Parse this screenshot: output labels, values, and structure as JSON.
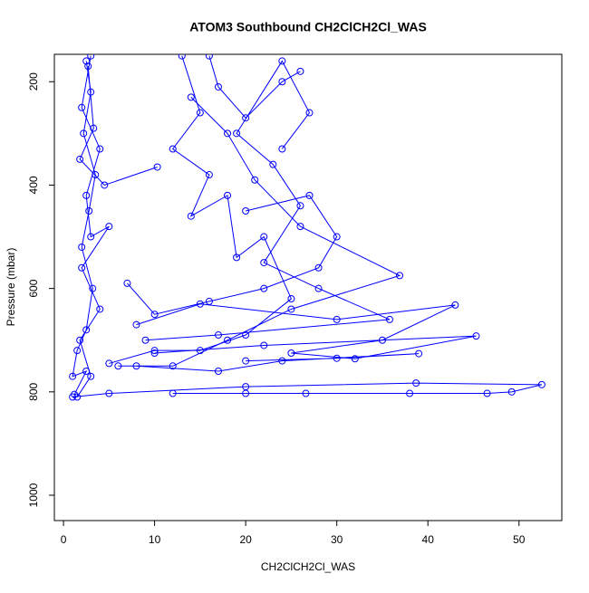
{
  "chart_data": {
    "type": "line",
    "title": "ATOM3 Southbound CH2ClCH2Cl_WAS",
    "x_label": "CH2ClCH2Cl_WAS",
    "y_label": "Pressure (mbar)",
    "xlim": [
      -1.0,
      54.7
    ],
    "xticks": [
      0,
      10,
      20,
      30,
      40,
      50
    ],
    "ylim": [
      1049,
      147
    ],
    "yticks": [
      200,
      400,
      600,
      800,
      1000
    ],
    "markers": true,
    "series": [
      {
        "color": "#0000ff",
        "x": [
          2.5,
          3,
          2.2,
          3.5,
          2.8,
          2,
          3.2,
          2.5,
          1.5,
          1,
          2.5,
          1.2,
          null,
          3,
          2,
          4,
          2.5,
          3,
          5,
          2,
          4,
          1.8,
          3,
          1.5,
          null,
          2.7,
          3.3,
          1.8,
          4.5,
          10.3,
          null,
          13,
          15,
          12,
          16,
          14,
          18,
          19,
          22,
          25,
          20,
          15,
          10,
          5,
          null,
          16,
          17,
          20,
          24,
          26,
          null,
          14,
          18,
          21,
          26,
          36.9,
          25,
          18,
          12,
          6,
          null,
          20,
          27,
          30,
          28,
          22,
          16,
          10,
          7,
          null,
          8,
          15,
          30,
          43,
          35,
          25,
          32,
          45.3,
          22,
          10,
          null,
          12,
          20,
          26.6,
          38,
          46.5,
          49.2,
          52.5,
          38.7,
          20,
          5,
          1,
          null,
          20,
          30,
          39,
          24,
          17,
          8,
          null,
          24,
          27,
          24,
          19,
          23,
          26,
          22,
          28,
          35.8,
          17,
          9
        ],
        "values": [
          160,
          220,
          300,
          380,
          450,
          520,
          600,
          680,
          720,
          770,
          760,
          805,
          null,
          150,
          250,
          330,
          420,
          500,
          480,
          560,
          640,
          700,
          770,
          810,
          null,
          170,
          290,
          350,
          400,
          365,
          null,
          150,
          260,
          330,
          380,
          460,
          420,
          540,
          500,
          620,
          690,
          720,
          720,
          745,
          null,
          150,
          210,
          270,
          200,
          180,
          null,
          230,
          300,
          390,
          480,
          575,
          640,
          700,
          750,
          750,
          null,
          450,
          420,
          500,
          560,
          600,
          625,
          650,
          590,
          null,
          670,
          630,
          660,
          632,
          700,
          725,
          736,
          692,
          710,
          725,
          null,
          803,
          803,
          803,
          803,
          803,
          800,
          786,
          783,
          790,
          803,
          810,
          null,
          740,
          735,
          726,
          740,
          760,
          750,
          null,
          330,
          260,
          160,
          300,
          360,
          440,
          550,
          600,
          660,
          690,
          700
        ]
      }
    ]
  }
}
